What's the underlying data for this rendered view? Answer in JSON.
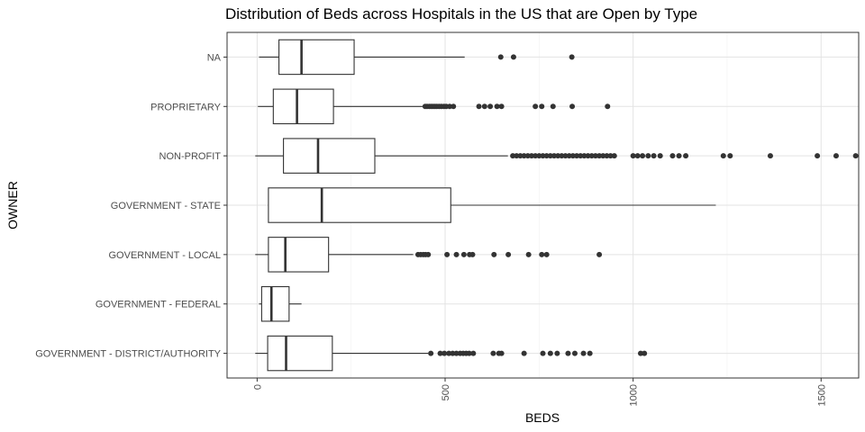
{
  "chart_data": {
    "type": "boxplot",
    "orientation": "horizontal",
    "title": "Distribution of Beds across Hospitals in the US that are Open by Type",
    "xlabel": "BEDS",
    "ylabel": "OWNER",
    "xlim": [
      -80,
      1600
    ],
    "xticks": [
      0,
      500,
      1000,
      1500
    ],
    "grid": true,
    "legend": "none",
    "categories": [
      "NA",
      "PROPRIETARY",
      "NON-PROFIT",
      "GOVERNMENT - STATE",
      "GOVERNMENT - LOCAL",
      "GOVERNMENT - FEDERAL",
      "GOVERNMENT - DISTRICT/AUTHORITY"
    ],
    "series": [
      {
        "category": "NA",
        "min": 5,
        "q1": 58,
        "median": 118,
        "q3": 258,
        "max": 552,
        "outliers": [
          648,
          682,
          837
        ]
      },
      {
        "category": "PROPRIETARY",
        "min": 2,
        "q1": 43,
        "median": 106,
        "q3": 203,
        "max": 440,
        "outliers": [
          447,
          452,
          458,
          463,
          468,
          473,
          478,
          484,
          490,
          497,
          503,
          512,
          522,
          590,
          605,
          620,
          638,
          650,
          740,
          757,
          787,
          838,
          932
        ]
      },
      {
        "category": "NON-PROFIT",
        "min": -5,
        "q1": 70,
        "median": 162,
        "q3": 313,
        "max": 667,
        "outliers": [
          680,
          690,
          700,
          710,
          720,
          730,
          740,
          750,
          760,
          770,
          780,
          790,
          800,
          810,
          820,
          830,
          840,
          850,
          860,
          870,
          880,
          890,
          900,
          910,
          920,
          930,
          940,
          950,
          1000,
          1012,
          1025,
          1040,
          1055,
          1072,
          1105,
          1122,
          1140,
          1240,
          1258,
          1365,
          1490,
          1540,
          1592
        ]
      },
      {
        "category": "GOVERNMENT - STATE",
        "min": 30,
        "q1": 30,
        "median": 172,
        "q3": 515,
        "max": 1220,
        "outliers": []
      },
      {
        "category": "GOVERNMENT - LOCAL",
        "min": -5,
        "q1": 30,
        "median": 75,
        "q3": 190,
        "max": 415,
        "outliers": [
          428,
          435,
          442,
          448,
          455,
          505,
          530,
          550,
          565,
          573,
          630,
          668,
          722,
          757,
          770,
          910
        ]
      },
      {
        "category": "GOVERNMENT - FEDERAL",
        "min": 5,
        "q1": 12,
        "median": 38,
        "q3": 85,
        "max": 118,
        "outliers": []
      },
      {
        "category": "GOVERNMENT - DISTRICT/AUTHORITY",
        "min": -5,
        "q1": 28,
        "median": 77,
        "q3": 200,
        "max": 455,
        "outliers": [
          462,
          487,
          498,
          510,
          520,
          530,
          540,
          548,
          556,
          564,
          575,
          628,
          643,
          650,
          710,
          760,
          780,
          798,
          827,
          845,
          868,
          885,
          1020,
          1030
        ]
      }
    ]
  }
}
